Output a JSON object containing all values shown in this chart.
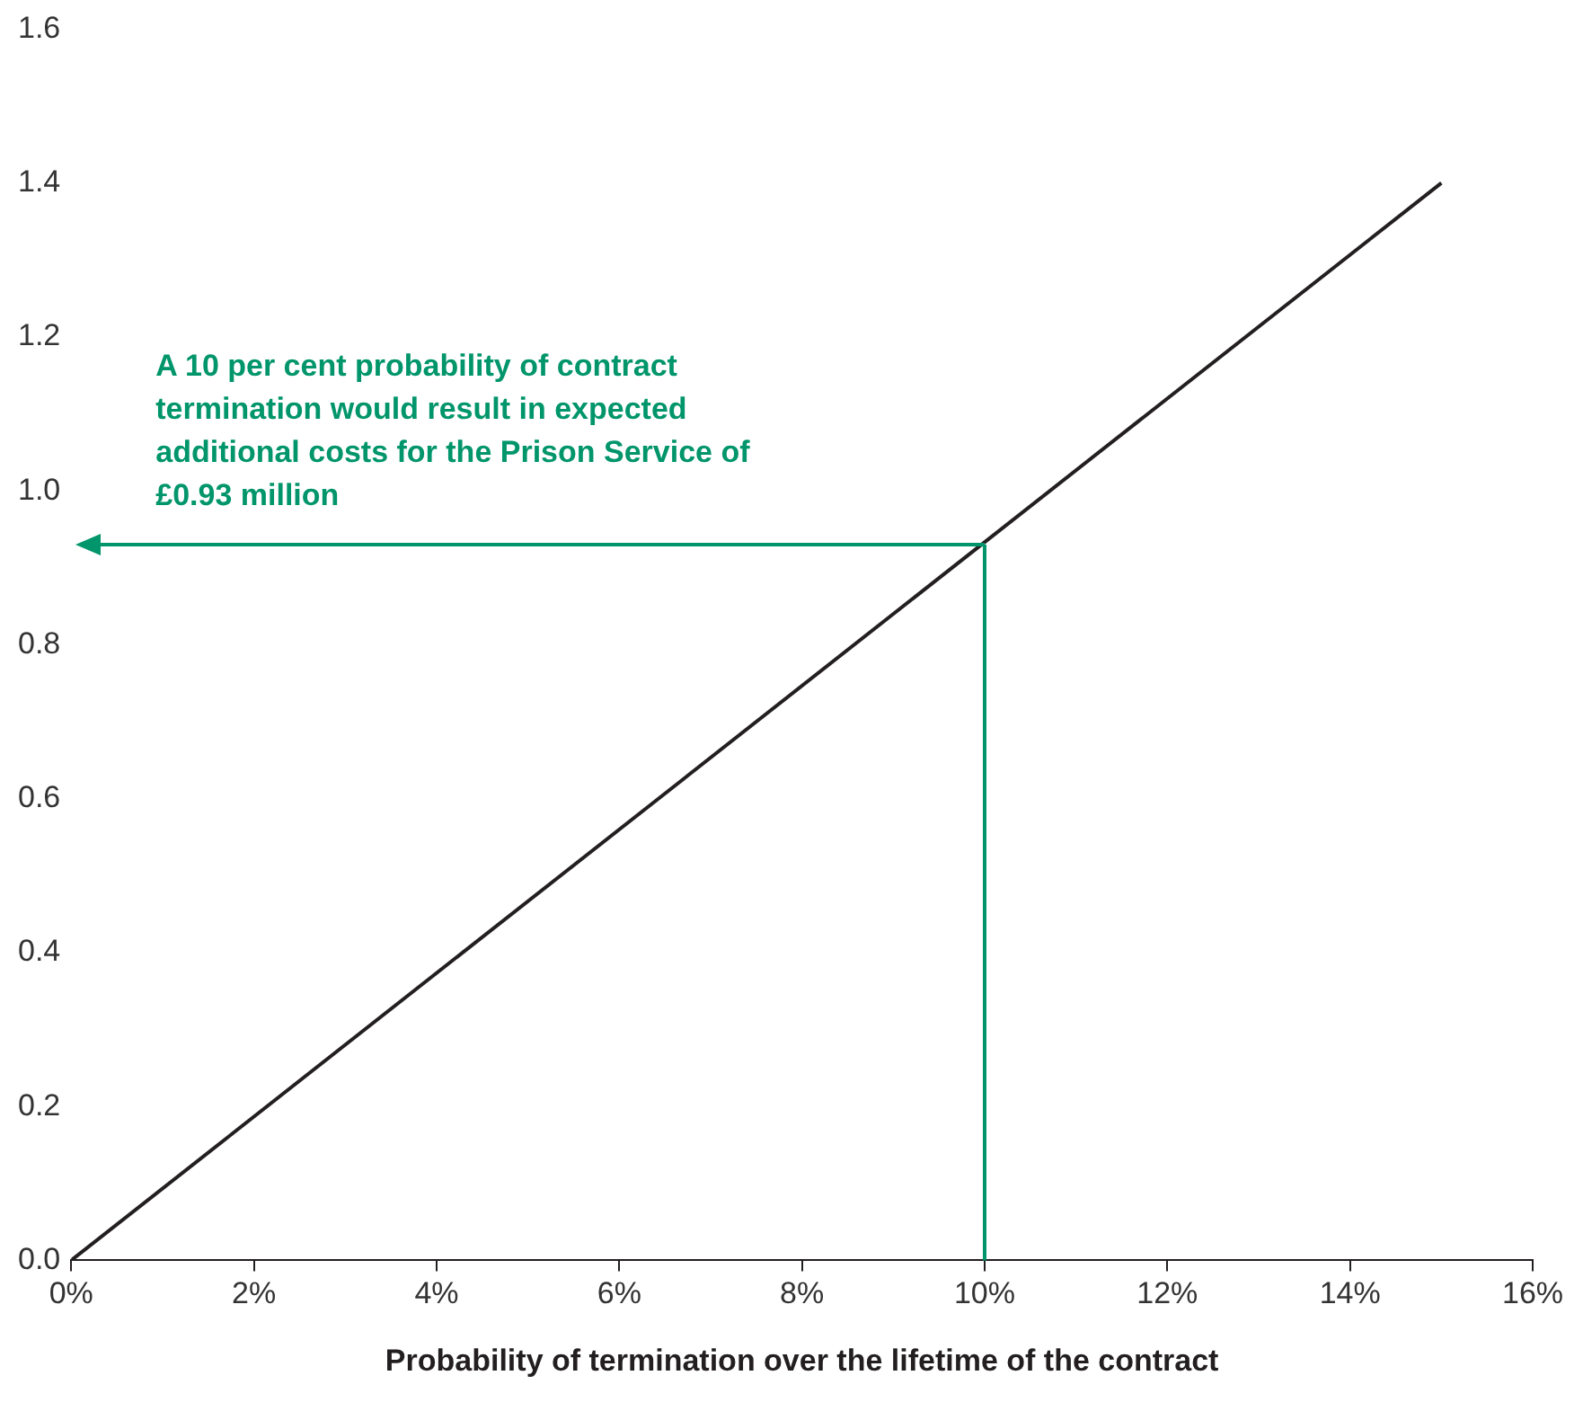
{
  "chart_data": {
    "type": "line",
    "xlabel": "Probability of termination over the lifetime of the contract",
    "x": [
      0,
      15
    ],
    "series": [
      {
        "color": "#231f20",
        "values": [
          0,
          1.4
        ]
      }
    ],
    "xlim": [
      0,
      16
    ],
    "xticks": [
      {
        "value": 0,
        "label": "0%"
      },
      {
        "value": 2,
        "label": "2%"
      },
      {
        "value": 4,
        "label": "4%"
      },
      {
        "value": 6,
        "label": "6%"
      },
      {
        "value": 8,
        "label": "8%"
      },
      {
        "value": 10,
        "label": "10%"
      },
      {
        "value": 12,
        "label": "12%"
      },
      {
        "value": 14,
        "label": "14%"
      },
      {
        "value": 16,
        "label": "16%"
      }
    ],
    "ylim": [
      0,
      1.6
    ],
    "yticks": [
      {
        "value": 0,
        "label": "0.0"
      },
      {
        "value": 0.2,
        "label": "0.2"
      },
      {
        "value": 0.4,
        "label": "0.4"
      },
      {
        "value": 0.6,
        "label": "0.6"
      },
      {
        "value": 0.8,
        "label": "0.8"
      },
      {
        "value": 1,
        "label": "1.0"
      },
      {
        "value": 1.2,
        "label": "1.2"
      },
      {
        "value": 1.4,
        "label": "1.4"
      },
      {
        "value": 1.6,
        "label": "1.6"
      }
    ],
    "annotations": [
      "A 10 per cent probability of contract termination would result in expected additional costs for the Prison Service of £0.93 million"
    ],
    "ref_lines": [
      {
        "axis": "x",
        "value": 10,
        "color": "#00956a"
      },
      {
        "axis": "y",
        "value": 0.93,
        "color": "#00956a"
      }
    ],
    "grid": false,
    "legend": false,
    "marker": "none",
    "line_style": "solid"
  }
}
